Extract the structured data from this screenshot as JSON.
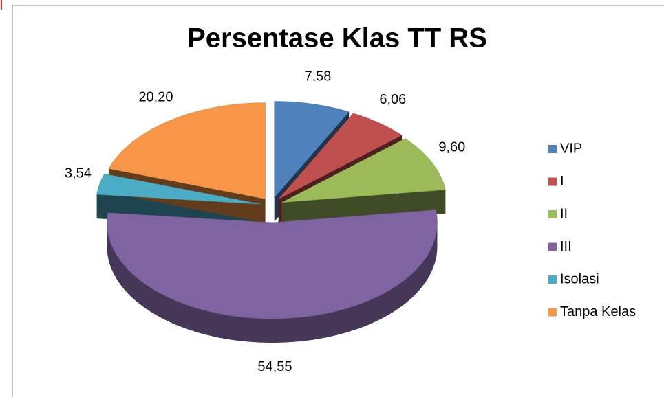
{
  "chart_data": {
    "type": "pie3d",
    "title": "Persentase Klas TT RS",
    "categories": [
      "VIP",
      "I",
      "II",
      "III",
      "Isolasi",
      "Tanpa Kelas"
    ],
    "values": [
      7.58,
      6.06,
      9.6,
      54.55,
      3.54,
      20.2
    ],
    "value_labels": [
      "7,58",
      "6,06",
      "9,60",
      "54,55",
      "3,54",
      "20,20"
    ],
    "colors": [
      "#4f81bd",
      "#c0504d",
      "#9bbb59",
      "#8064a2",
      "#4bacc6",
      "#f79646"
    ],
    "legend": "right"
  }
}
